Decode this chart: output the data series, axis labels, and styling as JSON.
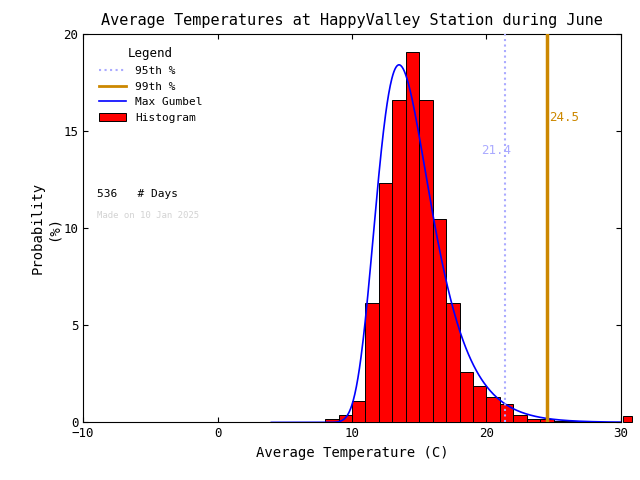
{
  "title": "Average Temperatures at HappyValley Station during June",
  "xlabel": "Average Temperature (C)",
  "ylabel": "Probability\n(%)",
  "xlim": [
    -10,
    30
  ],
  "ylim": [
    0,
    20
  ],
  "xticks": [
    -10,
    0,
    10,
    20,
    30
  ],
  "yticks": [
    0,
    5,
    10,
    15,
    20
  ],
  "bin_edges": [
    8,
    9,
    10,
    11,
    12,
    13,
    14,
    15,
    16,
    17,
    18,
    19,
    20,
    21,
    22,
    23,
    24,
    25,
    26,
    27,
    28,
    29,
    30
  ],
  "bin_heights": [
    0.19,
    0.37,
    1.12,
    6.16,
    12.31,
    16.6,
    19.03,
    16.6,
    10.45,
    6.16,
    2.6,
    1.86,
    1.3,
    0.93,
    0.37,
    0.19,
    0.19,
    0.09,
    0.09,
    0.0,
    0.0,
    0.0
  ],
  "hist_color": "#ff0000",
  "hist_edgecolor": "#000000",
  "percentile_95": 21.4,
  "percentile_99": 24.5,
  "percentile_95_color": "#aaaaff",
  "percentile_99_color": "#cc8800",
  "gumbel_mu": 13.5,
  "gumbel_beta": 2.0,
  "n_days": 536,
  "watermark": "Made on 10 Jan 2025",
  "legend_title": "Legend",
  "background_color": "#ffffff",
  "figsize": [
    6.4,
    4.8
  ],
  "dpi": 100
}
